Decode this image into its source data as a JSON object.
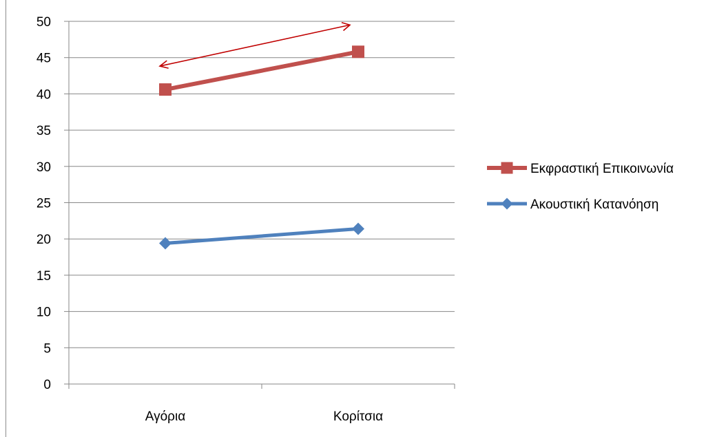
{
  "chart_data": {
    "type": "line",
    "title": "",
    "xlabel": "",
    "ylabel": "",
    "categories": [
      "Αγόρια",
      "Κορίτσια"
    ],
    "ylim": [
      0,
      50
    ],
    "yticks": [
      0,
      5,
      10,
      15,
      20,
      25,
      30,
      35,
      40,
      45,
      50
    ],
    "grid": true,
    "legend_position": "right",
    "series": [
      {
        "name": "Εκφραστική Επικοινωνία",
        "values": [
          40.6,
          45.8
        ],
        "color": "#c0504d",
        "marker": "square"
      },
      {
        "name": "Ακουστική Κατανόηση",
        "values": [
          19.4,
          21.4
        ],
        "color": "#4f81bd",
        "marker": "diamond"
      }
    ],
    "annotations": [
      {
        "type": "double-arrow",
        "color": "#c00000"
      }
    ]
  }
}
